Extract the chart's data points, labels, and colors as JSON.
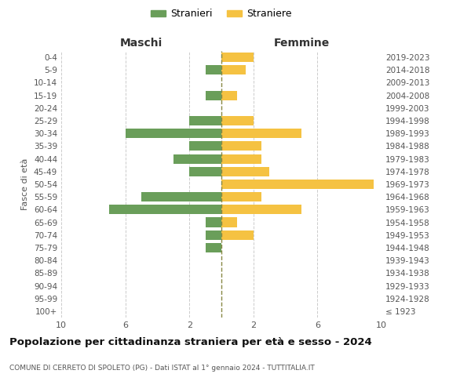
{
  "age_groups": [
    "100+",
    "95-99",
    "90-94",
    "85-89",
    "80-84",
    "75-79",
    "70-74",
    "65-69",
    "60-64",
    "55-59",
    "50-54",
    "45-49",
    "40-44",
    "35-39",
    "30-34",
    "25-29",
    "20-24",
    "15-19",
    "10-14",
    "5-9",
    "0-4"
  ],
  "birth_years": [
    "≤ 1923",
    "1924-1928",
    "1929-1933",
    "1934-1938",
    "1939-1943",
    "1944-1948",
    "1949-1953",
    "1954-1958",
    "1959-1963",
    "1964-1968",
    "1969-1973",
    "1974-1978",
    "1979-1983",
    "1984-1988",
    "1989-1993",
    "1994-1998",
    "1999-2003",
    "2004-2008",
    "2009-2013",
    "2014-2018",
    "2019-2023"
  ],
  "maschi": [
    0,
    0,
    0,
    0,
    0,
    1,
    1,
    1,
    7,
    5,
    0,
    2,
    3,
    2,
    6,
    2,
    0,
    1,
    0,
    1,
    0
  ],
  "femmine": [
    0,
    0,
    0,
    0,
    0,
    0,
    2,
    1,
    5,
    2.5,
    9.5,
    3,
    2.5,
    2.5,
    5,
    2,
    0,
    1,
    0,
    1.5,
    2
  ],
  "color_maschi": "#6a9e5a",
  "color_femmine": "#f5c242",
  "title": "Popolazione per cittadinanza straniera per età e sesso - 2024",
  "subtitle": "COMUNE DI CERRETO DI SPOLETO (PG) - Dati ISTAT al 1° gennaio 2024 - TUTTITALIA.IT",
  "ylabel_left": "Fasce di età",
  "xlabel_left": "Maschi",
  "xlabel_right": "Femmine",
  "legend_maschi": "Stranieri",
  "legend_femmine": "Straniere",
  "xlim": 10,
  "background_color": "#ffffff",
  "grid_color": "#cccccc"
}
